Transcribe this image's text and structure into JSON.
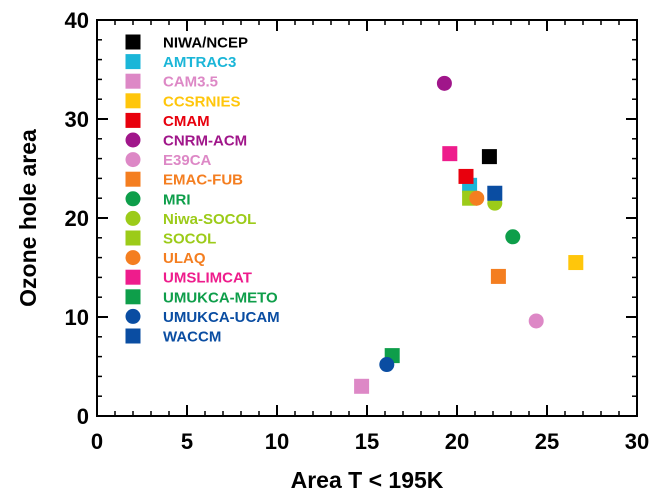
{
  "chart_data": {
    "type": "scatter",
    "xlabel": "Area T < 195K",
    "ylabel": "Ozone hole area",
    "xlim": [
      0,
      30
    ],
    "ylim": [
      0,
      40
    ],
    "x_ticks": [
      0,
      5,
      10,
      15,
      20,
      25,
      30
    ],
    "y_ticks": [
      0,
      10,
      20,
      30,
      40
    ],
    "grid": false,
    "legend_placement": "top-left",
    "series": [
      {
        "name": "NIWA/NCEP",
        "marker": "square",
        "color": "#000000",
        "x": 21.8,
        "y": 26.2
      },
      {
        "name": "AMTRAC3",
        "marker": "square",
        "color": "#1BB6D8",
        "x": 20.7,
        "y": 23.3
      },
      {
        "name": "CAM3.5",
        "marker": "square",
        "color": "#DD88C6",
        "x": 14.7,
        "y": 3.0
      },
      {
        "name": "CCSRNIES",
        "marker": "square",
        "color": "#FFC60B",
        "x": 26.6,
        "y": 15.5
      },
      {
        "name": "CMAM",
        "marker": "square",
        "color": "#E8000D",
        "x": 20.5,
        "y": 24.2
      },
      {
        "name": "CNRM-ACM",
        "marker": "circle",
        "color": "#A0168A",
        "x": 19.3,
        "y": 33.6
      },
      {
        "name": "E39CA",
        "marker": "circle",
        "color": "#DD88C6",
        "x": 24.4,
        "y": 9.6
      },
      {
        "name": "EMAC-FUB",
        "marker": "square",
        "color": "#F47E20",
        "x": 22.3,
        "y": 14.1
      },
      {
        "name": "MRI",
        "marker": "circle",
        "color": "#0E9E4A",
        "x": 23.1,
        "y": 18.1
      },
      {
        "name": "Niwa-SOCOL",
        "marker": "circle",
        "color": "#9CCB19",
        "x": 22.1,
        "y": 21.5
      },
      {
        "name": "SOCOL",
        "marker": "square",
        "color": "#9CCB19",
        "x": 20.7,
        "y": 22.0
      },
      {
        "name": "ULAQ",
        "marker": "circle",
        "color": "#F47E20",
        "x": 21.1,
        "y": 22.0
      },
      {
        "name": "UMSLIMCAT",
        "marker": "square",
        "color": "#EE1C8C",
        "x": 19.6,
        "y": 26.5
      },
      {
        "name": "UMUKCA-METO",
        "marker": "square",
        "color": "#0E9E4A",
        "x": 16.4,
        "y": 6.1
      },
      {
        "name": "UMUKCA-UCAM",
        "marker": "circle",
        "color": "#0A4DA2",
        "x": 16.1,
        "y": 5.2
      },
      {
        "name": "WACCM",
        "marker": "square",
        "color": "#0A4DA2",
        "x": 22.1,
        "y": 22.5
      }
    ]
  }
}
